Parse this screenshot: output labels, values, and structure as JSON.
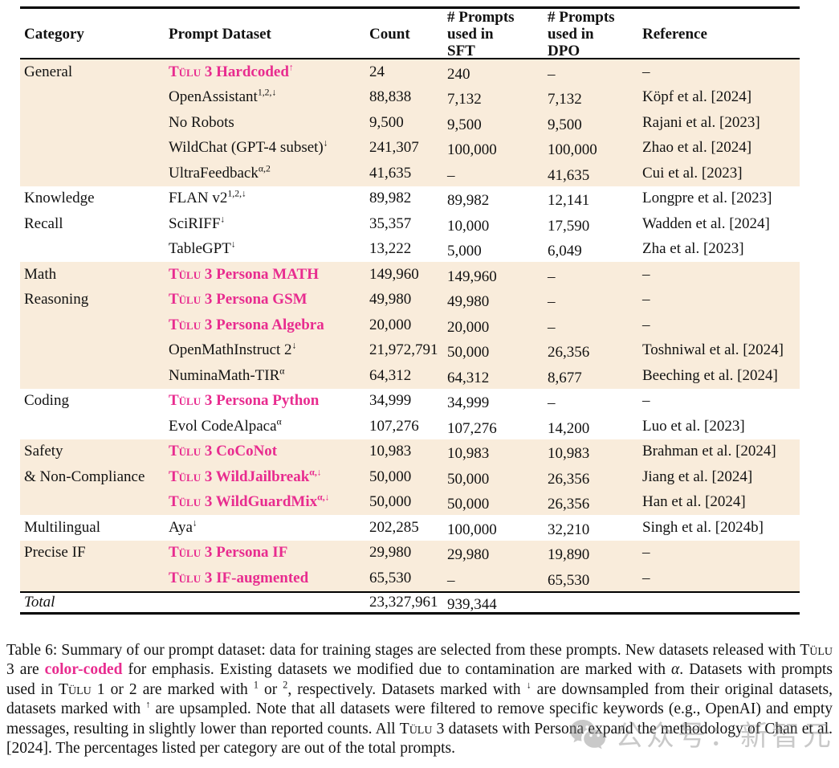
{
  "colors": {
    "accent_pink": "#e82c8f",
    "row_beige": "#f9ecdb",
    "watermark_gray": "#8a8a8a"
  },
  "header": {
    "columns": [
      {
        "key": "category",
        "label": "Category"
      },
      {
        "key": "prompt-dataset",
        "label": "Prompt Dataset"
      },
      {
        "key": "count",
        "label": "Count"
      },
      {
        "key": "sft",
        "label": "# Prompts\nused in\nSFT"
      },
      {
        "key": "dpo",
        "label": "# Prompts\nused in\nDPO"
      },
      {
        "key": "reference",
        "label": "Reference"
      }
    ]
  },
  "table": {
    "groups": [
      {
        "bg": "beige",
        "category_lines": [
          "General"
        ],
        "rows": [
          {
            "pink": true,
            "tulu": "Tülu",
            "name": "3 Hardcoded",
            "sup": "↑",
            "count": "24",
            "sft": "240",
            "dpo": "–",
            "ref": "–"
          },
          {
            "name": "OpenAssistant",
            "sup": "1,2,↓",
            "count": "88,838",
            "sft": "7,132",
            "dpo": "7,132",
            "ref": "Köpf et al. [2024]"
          },
          {
            "name": "No Robots",
            "count": "9,500",
            "sft": "9,500",
            "dpo": "9,500",
            "ref": "Rajani et al. [2023]"
          },
          {
            "name": "WildChat (GPT-4 subset)",
            "sup": "↓",
            "count": "241,307",
            "sft": "100,000",
            "dpo": "100,000",
            "ref": "Zhao et al. [2024]"
          },
          {
            "name": "UltraFeedback",
            "sup": "α,2",
            "count": "41,635",
            "sft": "–",
            "dpo": "41,635",
            "ref": "Cui et al. [2023]"
          }
        ]
      },
      {
        "bg": "white",
        "category_lines": [
          "Knowledge",
          "Recall"
        ],
        "rows": [
          {
            "name": "FLAN v2",
            "sup": "1,2,↓",
            "count": "89,982",
            "sft": "89,982",
            "dpo": "12,141",
            "ref": "Longpre et al. [2023]"
          },
          {
            "name": "SciRIFF",
            "sup": "↓",
            "count": "35,357",
            "sft": "10,000",
            "dpo": "17,590",
            "ref": "Wadden et al. [2024]"
          },
          {
            "name": "TableGPT",
            "sup": "↓",
            "count": "13,222",
            "sft": "5,000",
            "dpo": "6,049",
            "ref": "Zha et al. [2023]"
          }
        ]
      },
      {
        "bg": "beige",
        "category_lines": [
          "Math",
          "Reasoning"
        ],
        "rows": [
          {
            "pink": true,
            "tulu": "Tülu",
            "name": "3 Persona MATH",
            "count": "149,960",
            "sft": "149,960",
            "dpo": "–",
            "ref": "–"
          },
          {
            "pink": true,
            "tulu": "Tülu",
            "name": "3 Persona GSM",
            "count": "49,980",
            "sft": "49,980",
            "dpo": "–",
            "ref": "–"
          },
          {
            "pink": true,
            "tulu": "Tülu",
            "name": "3 Persona Algebra",
            "count": "20,000",
            "sft": "20,000",
            "dpo": "–",
            "ref": "–"
          },
          {
            "name": "OpenMathInstruct 2",
            "sup": "↓",
            "count": "21,972,791",
            "sft": "50,000",
            "dpo": "26,356",
            "ref": "Toshniwal et al. [2024]"
          },
          {
            "name": "NuminaMath-TIR",
            "sup": "α",
            "count": "64,312",
            "sft": "64,312",
            "dpo": "8,677",
            "ref": "Beeching et al. [2024]"
          }
        ]
      },
      {
        "bg": "white",
        "category_lines": [
          "Coding"
        ],
        "rows": [
          {
            "pink": true,
            "tulu": "Tülu",
            "name": "3 Persona Python",
            "count": "34,999",
            "sft": "34,999",
            "dpo": "–",
            "ref": "–"
          },
          {
            "name": "Evol CodeAlpaca",
            "sup": "α",
            "count": "107,276",
            "sft": "107,276",
            "dpo": "14,200",
            "ref": "Luo et al. [2023]"
          }
        ]
      },
      {
        "bg": "beige",
        "category_lines": [
          "Safety",
          "& Non-Compliance"
        ],
        "rows": [
          {
            "pink": true,
            "tulu": "Tülu",
            "name": "3 CoCoNot",
            "count": "10,983",
            "sft": "10,983",
            "dpo": "10,983",
            "ref": "Brahman et al. [2024]"
          },
          {
            "pink": true,
            "tulu": "Tülu",
            "name": "3 WildJailbreak",
            "sup": "α,↓",
            "count": "50,000",
            "sft": "50,000",
            "dpo": "26,356",
            "ref": "Jiang et al. [2024]"
          },
          {
            "pink": true,
            "tulu": "Tülu",
            "name": "3 WildGuardMix",
            "sup": "α,↓",
            "count": "50,000",
            "sft": "50,000",
            "dpo": "26,356",
            "ref": "Han et al. [2024]"
          }
        ]
      },
      {
        "bg": "white",
        "category_lines": [
          "Multilingual"
        ],
        "rows": [
          {
            "name": "Aya",
            "sup": "↓",
            "count": "202,285",
            "sft": "100,000",
            "dpo": "32,210",
            "ref": "Singh et al. [2024b]"
          }
        ]
      },
      {
        "bg": "beige",
        "category_lines": [
          "Precise IF"
        ],
        "rows": [
          {
            "pink": true,
            "tulu": "Tülu",
            "name": "3 Persona IF",
            "count": "29,980",
            "sft": "29,980",
            "dpo": "19,890",
            "ref": "–"
          },
          {
            "pink": true,
            "tulu": "Tülu",
            "name": "3 IF-augmented",
            "count": "65,530",
            "sft": "–",
            "dpo": "65,530",
            "ref": "–"
          }
        ]
      }
    ],
    "total": {
      "label": "Total",
      "count": "23,327,961",
      "sft": "939,344",
      "dpo": "",
      "ref": ""
    }
  },
  "caption": {
    "segments": [
      {
        "t": "Table 6: Summary of our prompt dataset: data for training stages are selected from these prompts. New datasets released with "
      },
      {
        "t": "Tülu",
        "c": "sc"
      },
      {
        "t": " 3 are "
      },
      {
        "t": "color-coded",
        "c": "pink"
      },
      {
        "t": " for emphasis. Existing datasets we modified due to contamination are marked with "
      },
      {
        "t": "α",
        "c": "it"
      },
      {
        "t": ". Datasets with prompts used in "
      },
      {
        "t": "Tülu",
        "c": "sc"
      },
      {
        "t": " 1 or 2 are marked with "
      },
      {
        "t": "1",
        "c": "sup"
      },
      {
        "t": " or "
      },
      {
        "t": "2",
        "c": "sup"
      },
      {
        "t": ", respectively. Datasets marked with "
      },
      {
        "t": "↓",
        "c": "sup"
      },
      {
        "t": " are downsampled from their original datasets, datasets marked with "
      },
      {
        "t": "↑",
        "c": "sup"
      },
      {
        "t": " are upsampled. Note that all datasets were filtered to remove specific keywords (e.g., OpenAI) and empty messages, resulting in slightly lower than reported counts. All "
      },
      {
        "t": "Tülu",
        "c": "sc"
      },
      {
        "t": " 3 datasets with Persona expand the methodology of Chan et al. [2024]. The percentages listed per category are out of the total prompts."
      }
    ]
  },
  "watermark": {
    "text": "公众号：新智元",
    "icon": "wechat-icon"
  }
}
